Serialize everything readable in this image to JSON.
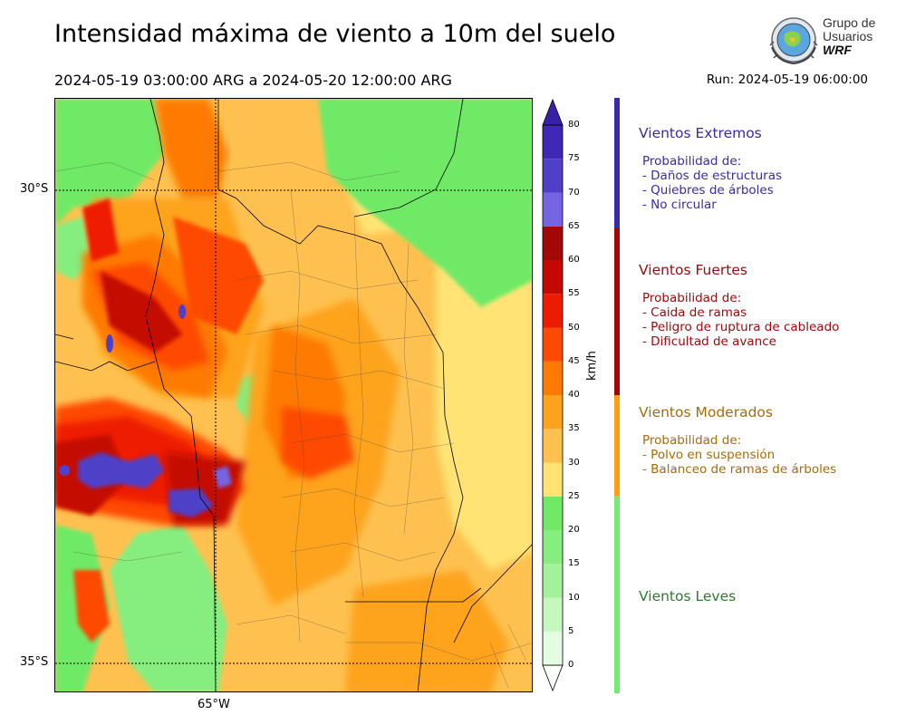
{
  "header": {
    "title": "Intensidad máxima de viento a 10m del suelo",
    "period": "2024-05-19 03:00:00 ARG  a  2024-05-20 12:00:00 ARG",
    "run": "Run: 2024-05-19 06:00:00"
  },
  "logo": {
    "line1": "Grupo de",
    "line2": "Usuarios",
    "line3": "WRF"
  },
  "map": {
    "lat_labels": [
      "30°S",
      "35°S"
    ],
    "lon_labels": [
      "65°W"
    ]
  },
  "colorbar": {
    "unit": "km/h",
    "ticks": [
      "0",
      "5",
      "10",
      "15",
      "20",
      "25",
      "30",
      "35",
      "40",
      "45",
      "50",
      "55",
      "60",
      "65",
      "70",
      "75",
      "80"
    ],
    "colors": [
      "#fbfff9",
      "#e3fde0",
      "#c4f8be",
      "#a3f29b",
      "#86ee7e",
      "#70ea66",
      "#ffe474",
      "#fec14f",
      "#fea31d",
      "#ff7a05",
      "#fe4a05",
      "#ee1b03",
      "#c40804",
      "#a10806",
      "#7565e3",
      "#5040c8",
      "#4027b5"
    ],
    "over_color": "#3a1fa7"
  },
  "categories": [
    {
      "title": "Vientos Extremos",
      "color": "#3a2aab",
      "desc": [
        "Probabilidad de:",
        "- Daños de estructuras",
        "- Quiebres de árboles",
        "- No circular"
      ]
    },
    {
      "title": "Vientos Fuertes",
      "color": "#9b0a0a",
      "desc": [
        "Probabilidad de:",
        "- Caida de ramas",
        "- Peligro de ruptura de cableado",
        "- Dificultad de avance"
      ]
    },
    {
      "title": "Vientos Moderados",
      "color": "#a86b08",
      "desc": [
        "Probabilidad de:",
        "- Polvo en suspensión",
        "- Balanceo de ramas de árboles"
      ]
    },
    {
      "title": "Vientos Leves",
      "color": "#2e7a2e",
      "desc": []
    }
  ],
  "category_bar_colors": [
    "#3a2aab",
    "#a30505",
    "#ff9e12",
    "#72ec72"
  ]
}
